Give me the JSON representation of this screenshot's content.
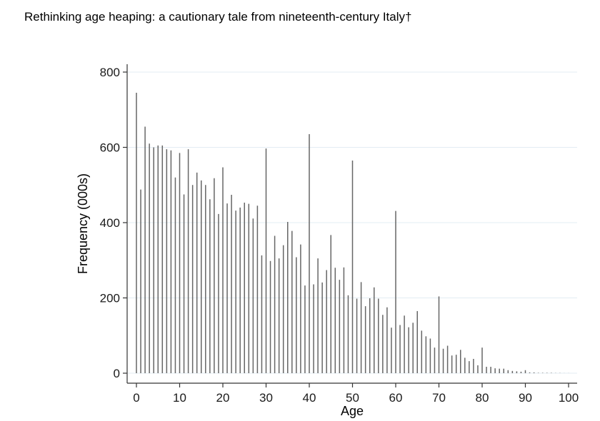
{
  "page": {
    "title": "Rethinking age heaping: a cautionary tale from nineteenth-century Italy†"
  },
  "chart_data": {
    "type": "bar",
    "title": "",
    "xlabel": "Age",
    "ylabel": "Frequency (000s)",
    "xlim": [
      0,
      100
    ],
    "ylim": [
      0,
      800
    ],
    "xticks": [
      0,
      10,
      20,
      30,
      40,
      50,
      60,
      70,
      80,
      90,
      100
    ],
    "yticks": [
      0,
      200,
      400,
      600,
      800
    ],
    "grid": true,
    "colors": {
      "bar": "#666666",
      "grid": "#e3ecf3",
      "axis": "#333333"
    },
    "x": [
      0,
      1,
      2,
      3,
      4,
      5,
      6,
      7,
      8,
      9,
      10,
      11,
      12,
      13,
      14,
      15,
      16,
      17,
      18,
      19,
      20,
      21,
      22,
      23,
      24,
      25,
      26,
      27,
      28,
      29,
      30,
      31,
      32,
      33,
      34,
      35,
      36,
      37,
      38,
      39,
      40,
      41,
      42,
      43,
      44,
      45,
      46,
      47,
      48,
      49,
      50,
      51,
      52,
      53,
      54,
      55,
      56,
      57,
      58,
      59,
      60,
      61,
      62,
      63,
      64,
      65,
      66,
      67,
      68,
      69,
      70,
      71,
      72,
      73,
      74,
      75,
      76,
      77,
      78,
      79,
      80,
      81,
      82,
      83,
      84,
      85,
      86,
      87,
      88,
      89,
      90,
      91,
      92,
      93,
      94,
      95,
      96,
      97,
      98,
      99,
      100
    ],
    "values": [
      745,
      488,
      655,
      610,
      600,
      605,
      605,
      595,
      592,
      520,
      585,
      475,
      595,
      500,
      533,
      512,
      500,
      462,
      518,
      423,
      547,
      451,
      474,
      432,
      440,
      453,
      450,
      411,
      445,
      313,
      597,
      298,
      365,
      305,
      340,
      402,
      378,
      308,
      342,
      233,
      635,
      236,
      305,
      241,
      274,
      367,
      280,
      248,
      281,
      207,
      565,
      198,
      242,
      178,
      199,
      228,
      198,
      155,
      175,
      121,
      431,
      128,
      153,
      122,
      134,
      165,
      113,
      98,
      92,
      68,
      204,
      65,
      73,
      47,
      49,
      62,
      41,
      32,
      38,
      21,
      68,
      17,
      17,
      13,
      12,
      12,
      8,
      6,
      5,
      4,
      8,
      2,
      2,
      1,
      1,
      1,
      1,
      0.5,
      0.5,
      0.2,
      0.2
    ]
  }
}
